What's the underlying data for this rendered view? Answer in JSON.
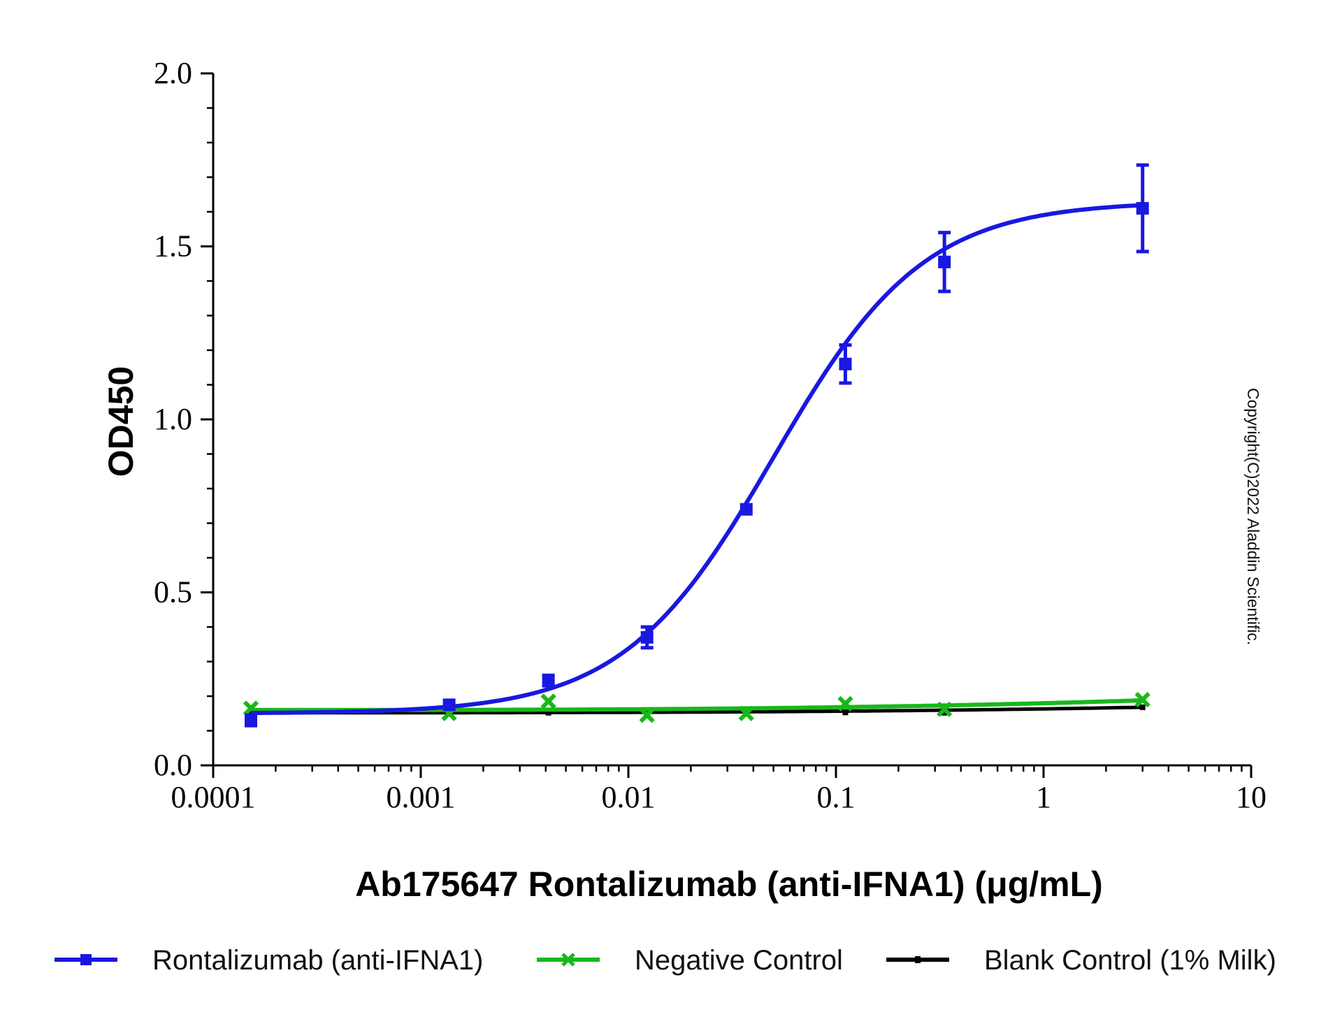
{
  "chart_data": {
    "type": "line",
    "title": "",
    "xlabel": "Ab175647 Rontalizumab (anti-IFNA1) (μg/mL)",
    "ylabel": "OD450",
    "x_scale": "log",
    "xlim": [
      0.0001,
      10
    ],
    "ylim": [
      0.0,
      2.0
    ],
    "x_tick_labels": [
      "0.0001",
      "0.001",
      "0.01",
      "0.1",
      "1",
      "10"
    ],
    "y_tick_labels": [
      "0.0",
      "0.5",
      "1.0",
      "1.5",
      "2.0"
    ],
    "legend_position": "bottom",
    "series": [
      {
        "name": "Rontalizumab (anti-IFNA1)",
        "color": "#1818e0",
        "marker": "square",
        "x": [
          0.000152,
          0.00137,
          0.00412,
          0.0123,
          0.037,
          0.111,
          0.333,
          3.0
        ],
        "y": [
          0.13,
          0.175,
          0.245,
          0.37,
          0.74,
          1.16,
          1.455,
          1.61
        ],
        "error": [
          0.015,
          0.01,
          0.015,
          0.03,
          0.01,
          0.055,
          0.085,
          0.125
        ],
        "fit": {
          "bottom": 0.15,
          "top": 1.63,
          "ec50": 0.05,
          "hill": 1.2
        }
      },
      {
        "name": "Negative Control",
        "color": "#18b818",
        "marker": "x",
        "x": [
          0.000152,
          0.00137,
          0.00412,
          0.0123,
          0.037,
          0.111,
          0.333,
          3.0
        ],
        "y": [
          0.165,
          0.15,
          0.185,
          0.145,
          0.15,
          0.178,
          0.162,
          0.19
        ],
        "fit_end": [
          0.16,
          0.188
        ]
      },
      {
        "name": "Blank Control (1% Milk)",
        "color": "#000000",
        "marker": "dash",
        "x": [
          0.000152,
          0.00137,
          0.00412,
          0.0123,
          0.037,
          0.111,
          0.333,
          3.0
        ],
        "y": [
          0.15,
          0.152,
          0.152,
          0.152,
          0.153,
          0.153,
          0.152,
          0.168
        ],
        "fit_end": [
          0.152,
          0.168
        ]
      }
    ]
  },
  "watermark": "Copyright(C)2022 Aladdin Scientific."
}
